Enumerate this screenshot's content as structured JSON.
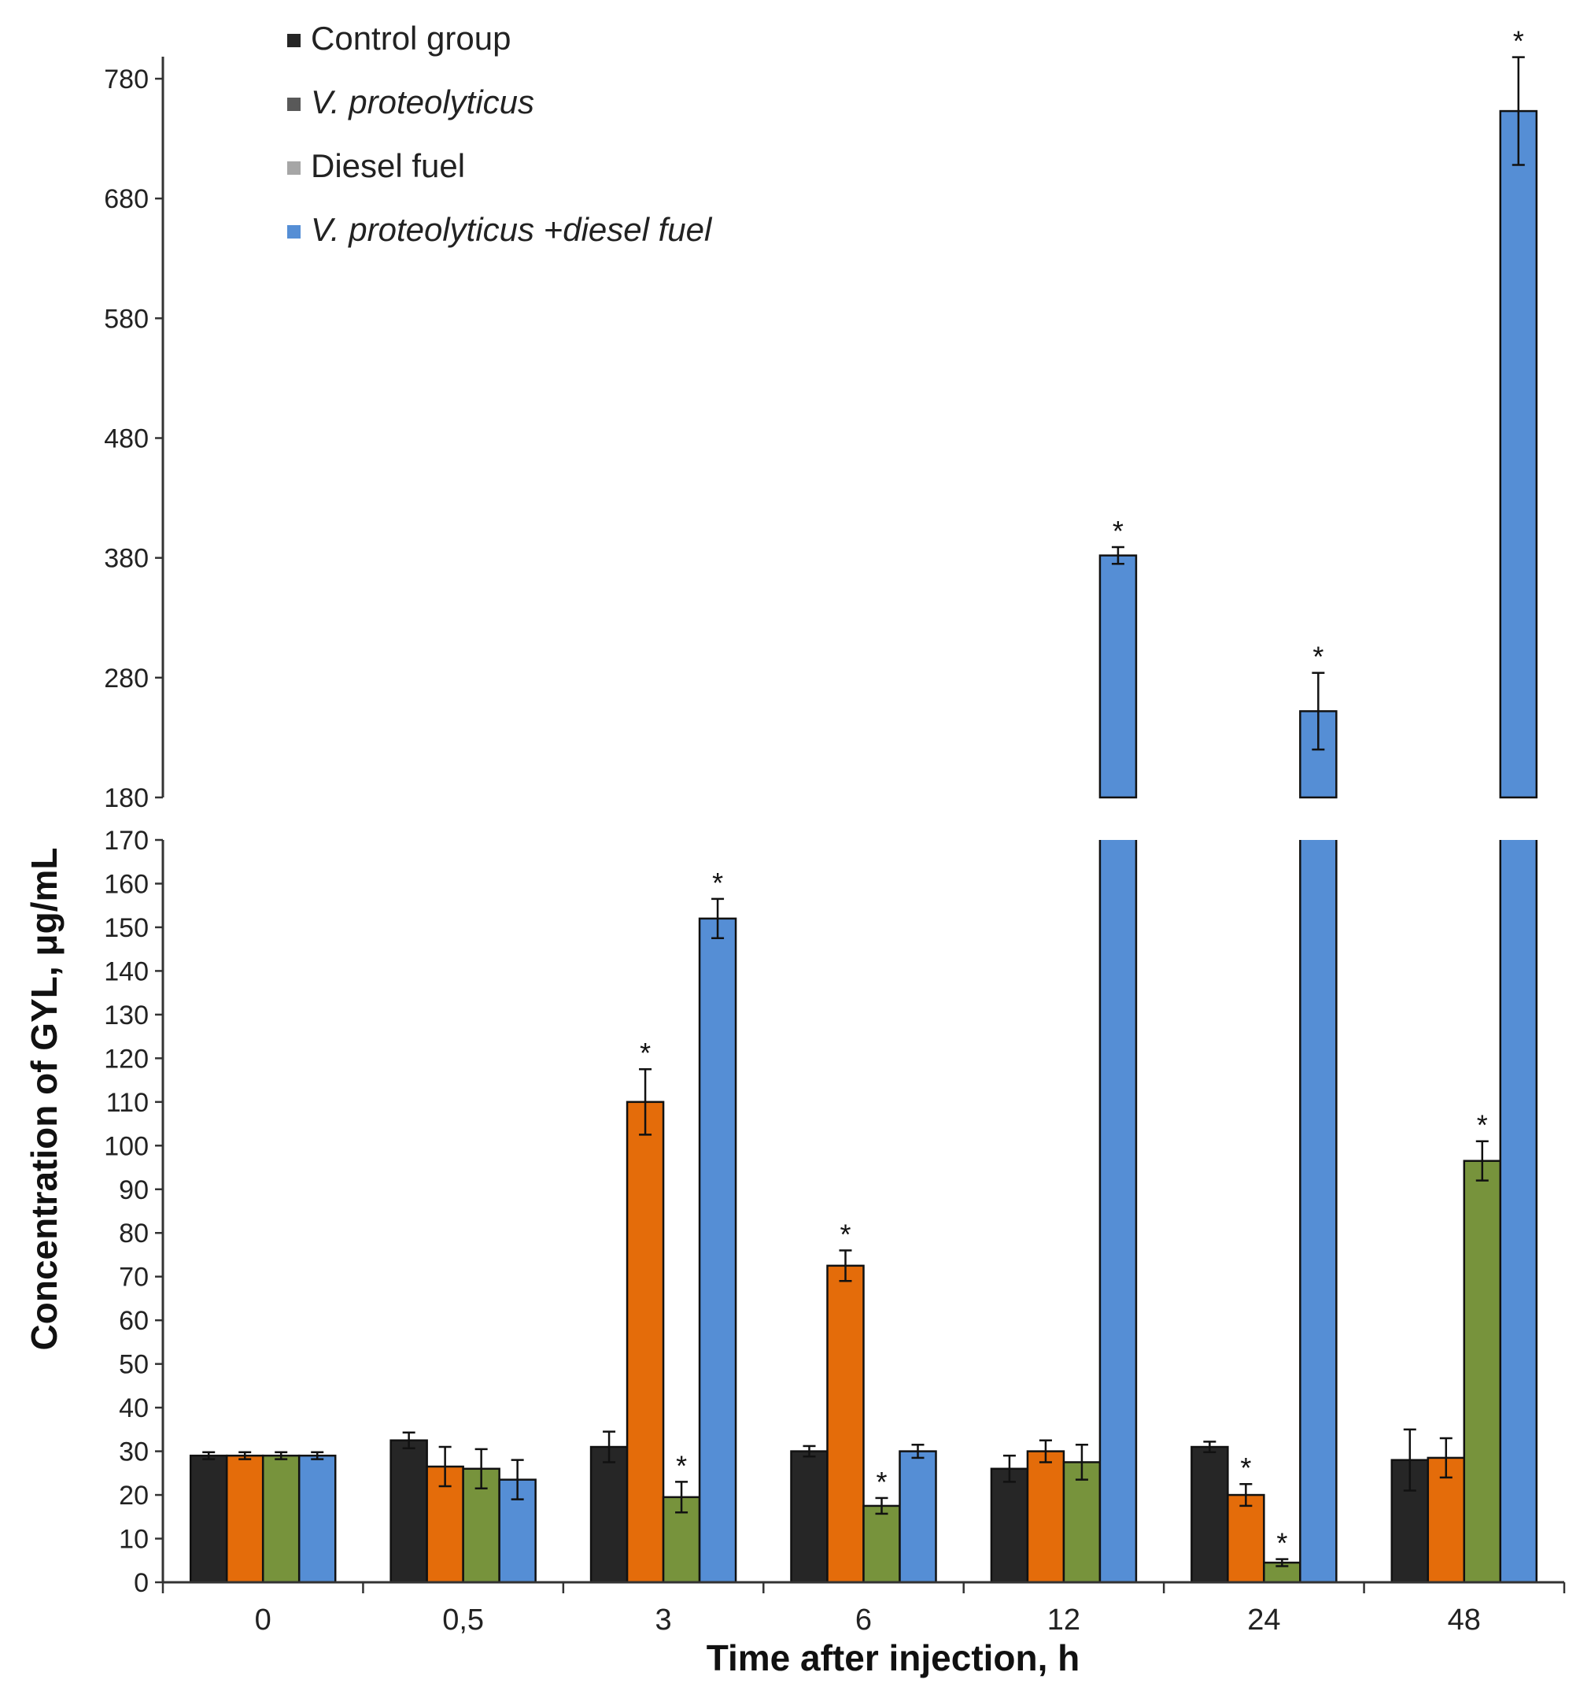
{
  "chart_data": {
    "type": "bar",
    "title": "",
    "xlabel": "Time after injection, h",
    "ylabel": "Concentration of GYL, μg/mL",
    "axis_break": {
      "lower_range": [
        0,
        170
      ],
      "upper_range": [
        180,
        780
      ]
    },
    "lower_ticks": [
      0,
      10,
      20,
      30,
      40,
      50,
      60,
      70,
      80,
      90,
      100,
      110,
      120,
      130,
      140,
      150,
      160,
      170
    ],
    "upper_ticks": [
      180,
      280,
      380,
      480,
      580,
      680,
      780
    ],
    "categories": [
      "0",
      "0,5",
      "3",
      "6",
      "12",
      "24",
      "48"
    ],
    "legend_position": "top-left",
    "significance_marker": "*",
    "series": [
      {
        "name": "Control group",
        "italic": false,
        "color": "#262626",
        "legend_color": "#262626",
        "values": [
          29,
          32.5,
          31,
          30,
          26,
          31,
          28
        ],
        "errors": [
          0.8,
          1.8,
          3.5,
          1.2,
          3,
          1.2,
          7
        ],
        "significant": [
          false,
          false,
          false,
          false,
          false,
          false,
          false
        ]
      },
      {
        "name": "V. proteolyticus",
        "italic": true,
        "color": "#e46c0a",
        "legend_color": "#595959",
        "values": [
          29,
          26.5,
          110,
          72.5,
          30,
          20,
          28.5
        ],
        "errors": [
          0.8,
          4.5,
          7.5,
          3.5,
          2.5,
          2.5,
          4.5
        ],
        "significant": [
          false,
          false,
          true,
          true,
          false,
          true,
          false
        ]
      },
      {
        "name": "Diesel fuel",
        "italic": false,
        "color": "#77933c",
        "legend_color": "#a6a6a6",
        "values": [
          29,
          26,
          19.5,
          17.5,
          27.5,
          4.5,
          96.5
        ],
        "errors": [
          0.8,
          4.5,
          3.5,
          1.8,
          4,
          0.8,
          4.5
        ],
        "significant": [
          false,
          false,
          true,
          true,
          false,
          true,
          true
        ]
      },
      {
        "name": "V. proteolyticus +diesel fuel",
        "italic": true,
        "color": "#558ed5",
        "legend_color": "#558ed5",
        "values": [
          29,
          23.5,
          152,
          30,
          382,
          252,
          753
        ],
        "errors": [
          0.8,
          4.5,
          4.5,
          1.5,
          7,
          32,
          45
        ],
        "significant": [
          false,
          false,
          true,
          false,
          true,
          true,
          true
        ]
      }
    ]
  }
}
